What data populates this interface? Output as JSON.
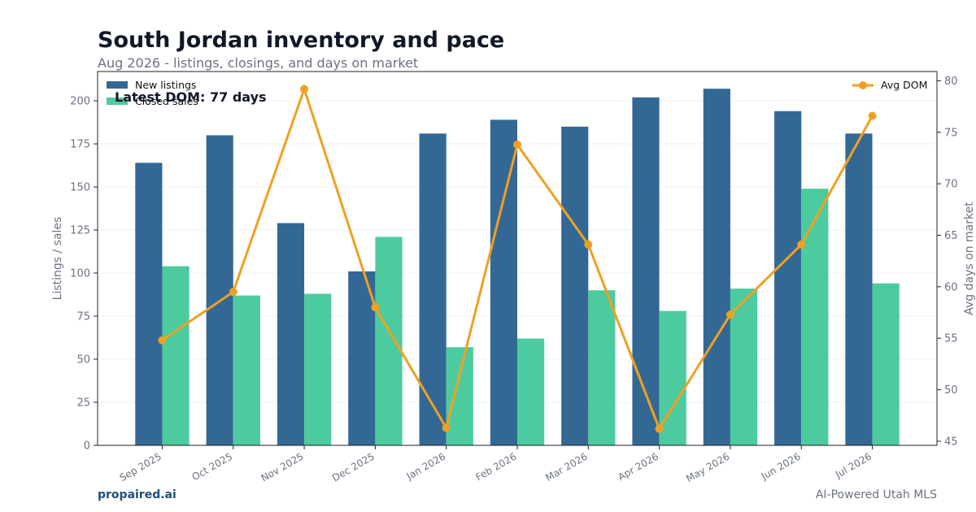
{
  "header": {
    "title": "South Jordan inventory and pace",
    "subtitle": "Aug 2026 - listings, closings, and days on market"
  },
  "footer": {
    "brand": "propaired.ai",
    "tagline": "AI-Powered Utah MLS"
  },
  "annotation": "Latest DOM: 77 days",
  "colors": {
    "new_listings": "#336895",
    "closed_sales": "#4ccb9e",
    "avg_dom": "#f0a020"
  },
  "chart_data": {
    "type": "bar",
    "categories": [
      "Sep 2025",
      "Oct 2025",
      "Nov 2025",
      "Dec 2025",
      "Jan 2026",
      "Feb 2026",
      "Mar 2026",
      "Apr 2026",
      "May 2026",
      "Jun 2026",
      "Jul 2026"
    ],
    "series": [
      {
        "name": "New listings",
        "type": "bar",
        "axis": "left",
        "values": [
          164,
          180,
          129,
          101,
          181,
          189,
          185,
          202,
          207,
          194,
          181
        ]
      },
      {
        "name": "Closed sales",
        "type": "bar",
        "axis": "left",
        "values": [
          104,
          87,
          88,
          121,
          57,
          62,
          90,
          78,
          91,
          149,
          94
        ]
      },
      {
        "name": "Avg DOM",
        "type": "line",
        "axis": "right",
        "values": [
          54.8,
          59.5,
          79.2,
          58.0,
          46.3,
          73.8,
          64.1,
          46.2,
          57.3,
          64.1,
          76.6
        ]
      }
    ],
    "ylabel": "Listings / sales",
    "y2label": "Avg days on market",
    "ylim": [
      0,
      217
    ],
    "y2lim": [
      44.6,
      80.9
    ],
    "yticks": [
      0,
      25,
      50,
      75,
      100,
      125,
      150,
      175,
      200
    ],
    "y2ticks": [
      45,
      50,
      55,
      60,
      65,
      70,
      75,
      80
    ],
    "grid": true,
    "legend_left": "top-left",
    "legend_right": "top-right"
  }
}
